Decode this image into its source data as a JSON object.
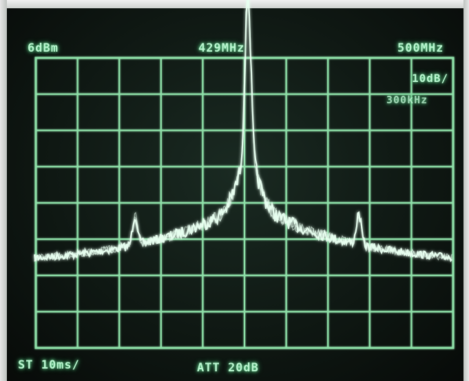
{
  "readouts": {
    "ref_level": "6dBm",
    "center_freq": "429MHz",
    "span": "500MHz",
    "scale": "10dB/",
    "rbw": "300kHz",
    "sweep_time": "ST 10ms/",
    "attenuation": "ATT 20dB"
  },
  "graticule": {
    "divisions_x": 10,
    "divisions_y": 8
  },
  "colors": {
    "trace": "#e8fff0",
    "grid": "#8ee0a8",
    "text": "#b9f5cf"
  }
}
